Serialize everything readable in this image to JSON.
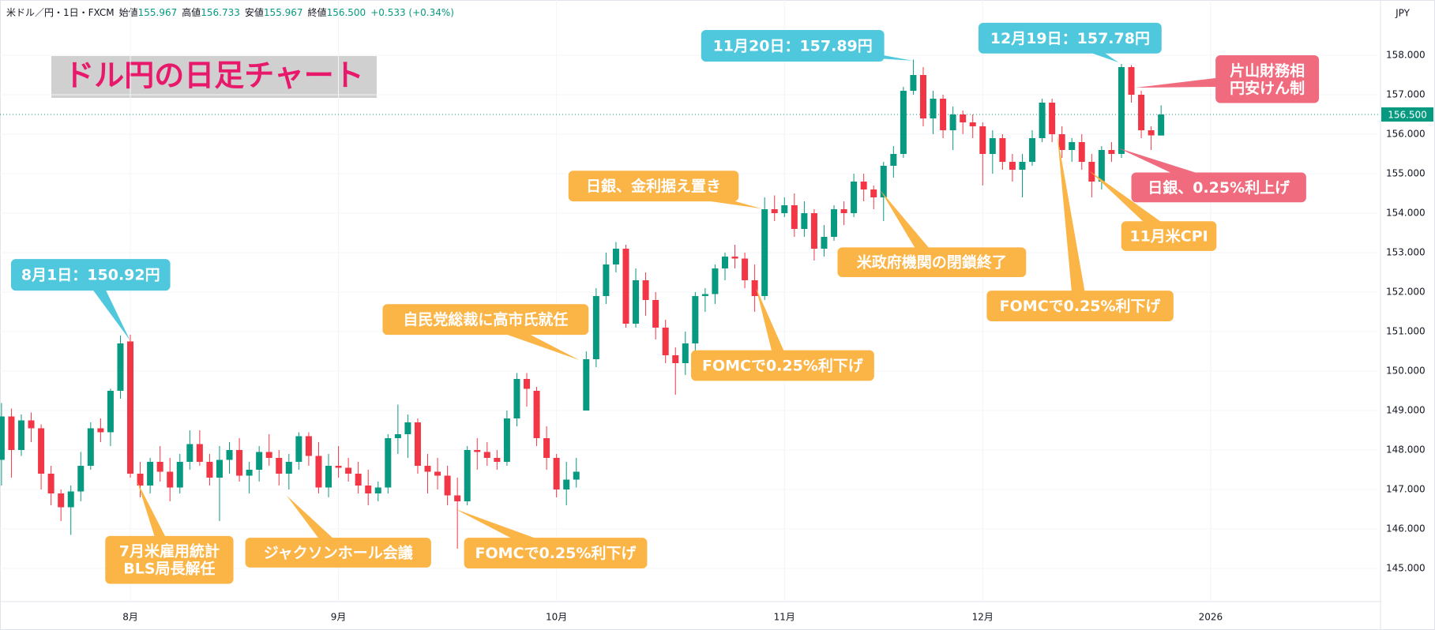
{
  "chart_data": {
    "type": "candlestick",
    "title": "ドル円の日足チャート",
    "header": {
      "symbol": "米ドル／円・1日・FXCM",
      "items": [
        {
          "label": "始値",
          "value": "155.967"
        },
        {
          "label": "高値",
          "value": "156.733"
        },
        {
          "label": "安値",
          "value": "155.967"
        },
        {
          "label": "終値",
          "value": "156.500"
        }
      ],
      "change": "+0.533 (+0.34%)"
    },
    "currency": "JPY",
    "up_color": "#089981",
    "down_color": "#f23645",
    "open": [
      147.75,
      148.85,
      148.0,
      148.75,
      148.55,
      147.4,
      146.9,
      146.55,
      146.95,
      147.6,
      148.55,
      148.45,
      149.5,
      150.75,
      147.4,
      147.1,
      147.7,
      147.45,
      147.05,
      147.7,
      148.15,
      147.7,
      147.3,
      147.75,
      148.0,
      147.35,
      147.5,
      147.95,
      147.8,
      147.4,
      147.7,
      148.35,
      147.85,
      147.05,
      147.6,
      147.55,
      147.4,
      147.1,
      146.9,
      147.05,
      148.3,
      148.4,
      148.7,
      147.6,
      147.45,
      147.35,
      146.85,
      146.7,
      148.0,
      147.95,
      147.8,
      147.7,
      148.8,
      149.8,
      149.5,
      148.3,
      147.8,
      147.0,
      147.25,
      149.0,
      150.3,
      151.9,
      152.7,
      153.1,
      151.2,
      152.3,
      151.8,
      151.1,
      150.4,
      150.2,
      150.7,
      151.9,
      151.95,
      152.6,
      152.9,
      152.85,
      152.3,
      151.9,
      154.1,
      154.0,
      154.2,
      153.6,
      154.0,
      153.1,
      153.4,
      154.1,
      154.0,
      154.8,
      154.6,
      154.4,
      155.2,
      155.5,
      157.1,
      157.5,
      156.4,
      156.9,
      156.1,
      156.5,
      156.3,
      156.2,
      155.5,
      155.9,
      155.3,
      155.1,
      155.3,
      155.9,
      156.8,
      156.0,
      155.6,
      155.8,
      155.3,
      154.8,
      155.6,
      155.5,
      157.7,
      157.0,
      156.1,
      155.967
    ],
    "high": [
      149.19,
      149.05,
      148.9,
      148.95,
      148.65,
      147.6,
      147.0,
      147.1,
      147.95,
      148.7,
      148.8,
      149.55,
      150.9,
      150.92,
      147.7,
      147.8,
      148.1,
      147.8,
      147.9,
      148.5,
      148.5,
      147.9,
      148.1,
      148.2,
      148.3,
      147.7,
      148.1,
      148.4,
      148.0,
      147.9,
      148.45,
      148.45,
      148.2,
      147.9,
      148.1,
      147.8,
      147.7,
      147.5,
      147.2,
      148.4,
      149.15,
      148.9,
      148.8,
      147.9,
      147.8,
      147.6,
      147.3,
      148.1,
      148.3,
      148.2,
      148.0,
      149.0,
      149.95,
      149.95,
      149.6,
      148.6,
      147.9,
      147.7,
      147.8,
      150.5,
      152.1,
      153.0,
      153.27,
      153.2,
      152.6,
      152.5,
      152.0,
      151.3,
      150.6,
      151.0,
      152.0,
      152.1,
      152.7,
      153.0,
      153.2,
      153.0,
      152.7,
      154.4,
      154.45,
      154.4,
      154.5,
      154.3,
      154.1,
      153.7,
      154.2,
      154.3,
      155.0,
      155.0,
      154.7,
      155.3,
      155.7,
      157.2,
      157.89,
      157.7,
      157.1,
      157.0,
      156.7,
      156.6,
      156.5,
      156.3,
      156.1,
      156.0,
      155.5,
      155.5,
      156.1,
      156.9,
      156.9,
      156.2,
      155.9,
      156.0,
      155.5,
      155.7,
      155.8,
      157.78,
      157.75,
      157.1,
      156.2,
      156.733
    ],
    "low": [
      147.1,
      147.3,
      147.85,
      148.2,
      147.0,
      146.6,
      146.2,
      145.85,
      146.7,
      147.5,
      148.2,
      148.1,
      149.3,
      147.3,
      146.8,
      146.9,
      147.2,
      146.7,
      146.9,
      147.5,
      147.6,
      147.1,
      146.2,
      147.4,
      147.2,
      146.9,
      147.2,
      147.6,
      147.1,
      147.0,
      147.5,
      147.6,
      146.9,
      146.8,
      147.3,
      147.2,
      146.9,
      146.6,
      146.7,
      146.9,
      147.9,
      147.8,
      147.4,
      146.9,
      147.0,
      146.6,
      145.5,
      146.6,
      147.5,
      147.6,
      147.5,
      147.6,
      148.6,
      149.1,
      148.1,
      147.5,
      146.8,
      146.6,
      147.05,
      149.0,
      150.1,
      151.7,
      152.5,
      151.1,
      151.1,
      151.4,
      150.8,
      150.2,
      149.4,
      149.9,
      150.5,
      151.5,
      151.7,
      152.3,
      152.6,
      152.1,
      151.5,
      151.8,
      153.8,
      153.9,
      153.4,
      153.4,
      152.8,
      152.9,
      153.3,
      153.7,
      153.9,
      154.3,
      154.1,
      153.8,
      154.9,
      155.4,
      157.0,
      156.2,
      156.0,
      155.9,
      155.6,
      156.0,
      155.9,
      154.7,
      155.0,
      155.1,
      154.8,
      154.4,
      155.2,
      155.8,
      155.8,
      155.4,
      155.3,
      155.1,
      154.4,
      154.6,
      155.3,
      155.4,
      156.8,
      155.9,
      155.6,
      155.967
    ],
    "close": [
      148.85,
      148.0,
      148.75,
      148.55,
      147.4,
      146.9,
      146.55,
      146.95,
      147.6,
      148.55,
      148.45,
      149.5,
      150.7,
      147.4,
      147.1,
      147.7,
      147.45,
      147.05,
      147.7,
      148.15,
      147.7,
      147.3,
      147.75,
      148.0,
      147.35,
      147.5,
      147.95,
      147.8,
      147.4,
      147.7,
      148.35,
      147.85,
      147.05,
      147.6,
      147.55,
      147.4,
      147.1,
      146.9,
      147.05,
      148.3,
      148.4,
      148.7,
      147.6,
      147.45,
      147.35,
      146.85,
      146.7,
      148.0,
      147.95,
      147.8,
      147.7,
      148.8,
      149.8,
      149.55,
      148.3,
      147.8,
      147.0,
      147.25,
      147.45,
      150.3,
      151.9,
      152.7,
      153.1,
      151.2,
      152.3,
      151.8,
      151.1,
      150.4,
      150.2,
      150.7,
      151.9,
      151.95,
      152.6,
      152.9,
      152.85,
      152.3,
      151.9,
      154.1,
      154.0,
      154.2,
      153.6,
      154.0,
      153.1,
      153.4,
      154.1,
      154.0,
      154.8,
      154.6,
      154.4,
      155.2,
      155.5,
      157.1,
      157.5,
      156.4,
      156.9,
      156.1,
      156.5,
      156.3,
      156.2,
      155.5,
      155.9,
      155.3,
      155.1,
      155.3,
      155.9,
      156.8,
      156.0,
      155.6,
      155.8,
      155.3,
      154.8,
      155.6,
      155.5,
      157.7,
      157.0,
      156.1,
      155.97,
      156.5
    ],
    "xlim": [
      -0.15,
      138.9
    ],
    "xticks": [
      {
        "value": 13,
        "label": "8月"
      },
      {
        "value": 34,
        "label": "9月"
      },
      {
        "value": 56,
        "label": "10月"
      },
      {
        "value": 79,
        "label": "11月"
      },
      {
        "value": 99,
        "label": "12月"
      },
      {
        "value": 122,
        "label": "2026"
      }
    ],
    "ylim": [
      144.16,
      159.4
    ],
    "yticks": [
      {
        "value": 145,
        "label": "145.000"
      },
      {
        "value": 146,
        "label": "146.000"
      },
      {
        "value": 147,
        "label": "147.000"
      },
      {
        "value": 148,
        "label": "148.000"
      },
      {
        "value": 149,
        "label": "149.000"
      },
      {
        "value": 150,
        "label": "150.000"
      },
      {
        "value": 151,
        "label": "151.000"
      },
      {
        "value": 152,
        "label": "152.000"
      },
      {
        "value": 153,
        "label": "153.000"
      },
      {
        "value": 154,
        "label": "154.000"
      },
      {
        "value": 155,
        "label": "155.000"
      },
      {
        "value": 156,
        "label": "156.000"
      },
      {
        "value": 157,
        "label": "157.000"
      },
      {
        "value": 158,
        "label": "158.000"
      }
    ],
    "last_price": {
      "value": 156.5,
      "label": "156.500"
    },
    "grid": true,
    "annotations": [
      {
        "lines": [
          "8月1日：150.92円"
        ],
        "color": "#4fc8dd"
      },
      {
        "lines": [
          "7月米雇用統計",
          "BLS局長解任"
        ],
        "color": "#fbb446"
      },
      {
        "lines": [
          "ジャクソンホール会議"
        ],
        "color": "#fbb446"
      },
      {
        "lines": [
          "FOMCで0.25%利下げ"
        ],
        "color": "#fbb446"
      },
      {
        "lines": [
          "自民党総裁に高市氏就任"
        ],
        "color": "#fbb446"
      },
      {
        "lines": [
          "FOMCで0.25%利下げ"
        ],
        "color": "#fbb446"
      },
      {
        "lines": [
          "日銀、金利据え置き"
        ],
        "color": "#fbb446"
      },
      {
        "lines": [
          "米政府機関の閉鎖終了"
        ],
        "color": "#fbb446"
      },
      {
        "lines": [
          "11月20日：157.89円"
        ],
        "color": "#4fc8dd"
      },
      {
        "lines": [
          "12月19日：157.78円"
        ],
        "color": "#4fc8dd"
      },
      {
        "lines": [
          "片山財務相",
          "円安けん制"
        ],
        "color": "#f06b7d"
      },
      {
        "lines": [
          "日銀、0.25%利上げ"
        ],
        "color": "#f06b7d"
      },
      {
        "lines": [
          "11月米CPI"
        ],
        "color": "#fbb446"
      },
      {
        "lines": [
          "FOMCで0.25%利下げ"
        ],
        "color": "#fbb446"
      }
    ]
  }
}
